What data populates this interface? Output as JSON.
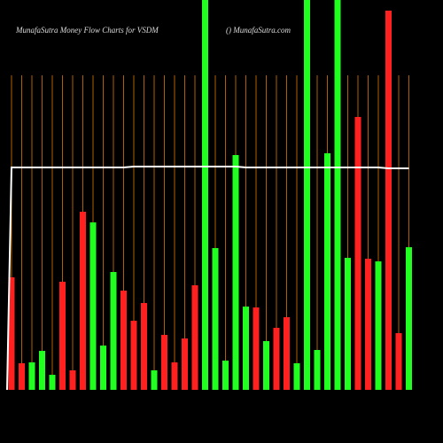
{
  "chart_data": {
    "type": "bar",
    "title": "MunafaSutra  Money Flow  Charts for VSDM",
    "subtitle": "() MunafaSutra.com",
    "values": [
      127,
      30,
      31,
      44,
      17,
      122,
      22,
      201,
      189,
      50,
      133,
      112,
      78,
      98,
      22,
      62,
      31,
      58,
      118,
      460,
      160,
      33,
      265,
      94,
      93,
      55,
      70,
      82,
      30,
      460,
      45,
      267,
      460,
      149,
      308,
      148,
      145,
      428,
      64,
      161
    ],
    "colors": [
      "#ff2020",
      "#ff2020",
      "#20ff20",
      "#20ff20",
      "#20ff20",
      "#ff2020",
      "#ff2020",
      "#ff2020",
      "#20ff20",
      "#20ff20",
      "#20ff20",
      "#ff2020",
      "#ff2020",
      "#ff2020",
      "#20ff20",
      "#ff2020",
      "#ff2020",
      "#ff2020",
      "#ff2020",
      "#20ff20",
      "#20ff20",
      "#20ff20",
      "#20ff20",
      "#20ff20",
      "#ff2020",
      "#20ff20",
      "#ff2020",
      "#ff2020",
      "#20ff20",
      "#20ff20",
      "#20ff20",
      "#20ff20",
      "#20ff20",
      "#20ff20",
      "#ff2020",
      "#ff2020",
      "#20ff20",
      "#ff2020",
      "#ff2020",
      "#20ff20"
    ],
    "line": {
      "color": "#ffffff",
      "values": [
        251,
        251,
        251,
        251,
        251,
        251,
        251,
        251,
        251,
        251,
        251,
        251,
        252,
        252,
        252,
        252,
        252,
        252,
        252,
        252,
        252,
        252,
        252,
        251,
        251,
        251,
        251,
        251,
        251,
        251,
        251,
        251,
        251,
        251,
        251,
        251,
        251,
        250,
        250,
        250
      ]
    },
    "ylim": [
      0,
      440
    ],
    "grid": true,
    "grid_color": "#b06000"
  }
}
